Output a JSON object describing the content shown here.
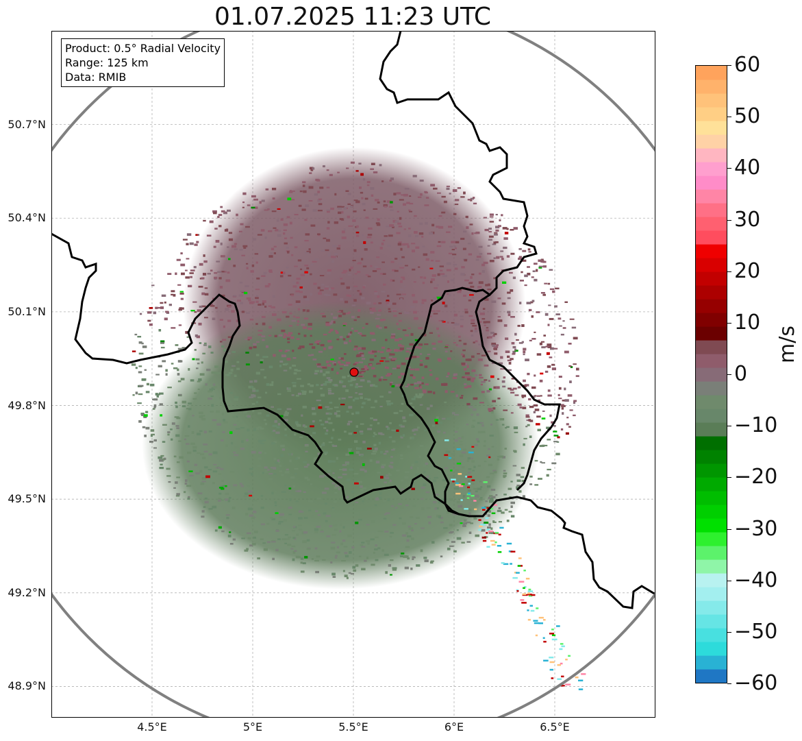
{
  "title": "01.07.2025 11:23 UTC",
  "info": {
    "product": "Product: 0.5° Radial Velocity",
    "range": "Range: 125 km",
    "source": "Data: RMIB"
  },
  "chart_data": {
    "type": "heatmap",
    "title": "01.07.2025 11:23 UTC",
    "xlabel": "",
    "ylabel": "",
    "xlim": [
      4.0,
      7.0
    ],
    "ylim": [
      48.8,
      51.0
    ],
    "x_ticks": [
      4.5,
      5.0,
      5.5,
      6.0,
      6.5
    ],
    "x_tick_labels": [
      "4.5°E",
      "5°E",
      "5.5°E",
      "6°E",
      "6.5°E"
    ],
    "y_ticks": [
      48.9,
      49.2,
      49.5,
      49.8,
      50.1,
      50.4,
      50.7
    ],
    "y_tick_labels": [
      "48.9°N",
      "49.2°N",
      "49.5°N",
      "49.8°N",
      "50.1°N",
      "50.4°N",
      "50.7°N"
    ],
    "grid": true,
    "radar_site": {
      "lon": 5.505,
      "lat": 49.914
    },
    "colorbar": {
      "label": "m/s",
      "min": -60,
      "max": 60,
      "ticks": [
        60,
        50,
        40,
        30,
        20,
        10,
        0,
        -10,
        -20,
        -30,
        -40,
        -50,
        -60
      ],
      "tick_labels": [
        "60",
        "50",
        "40",
        "30",
        "20",
        "10",
        "0",
        "−10",
        "−20",
        "−30",
        "−40",
        "−50",
        "−60"
      ],
      "colors": [
        "#1f77c4",
        "#29b2d4",
        "#2ddbdb",
        "#48e0e0",
        "#66e5e5",
        "#85eaea",
        "#a3efef",
        "#b8f2f0",
        "#8ff5a8",
        "#5cf26b",
        "#2ef02e",
        "#00e000",
        "#00cf00",
        "#00bd00",
        "#00aa00",
        "#009600",
        "#008200",
        "#006f00",
        "#5a7d57",
        "#68876a",
        "#6f8a6c",
        "#7a7f78",
        "#876b77",
        "#8f5c6b",
        "#7f4a52",
        "#6b0000",
        "#800000",
        "#960000",
        "#ac0000",
        "#c20000",
        "#d90000",
        "#ef0000",
        "#ff4d5e",
        "#ff6070",
        "#ff7086",
        "#ff85a6",
        "#ff8cc8",
        "#ff9fce",
        "#ffb6c1",
        "#ffd2a6",
        "#ffe199",
        "#ffcf85",
        "#ffc27a",
        "#ffb26b",
        "#ffa35c"
      ]
    },
    "field_description_values": {
      "north_sector_mean_velocity": 3,
      "south_sector_mean_velocity": -5
    }
  }
}
